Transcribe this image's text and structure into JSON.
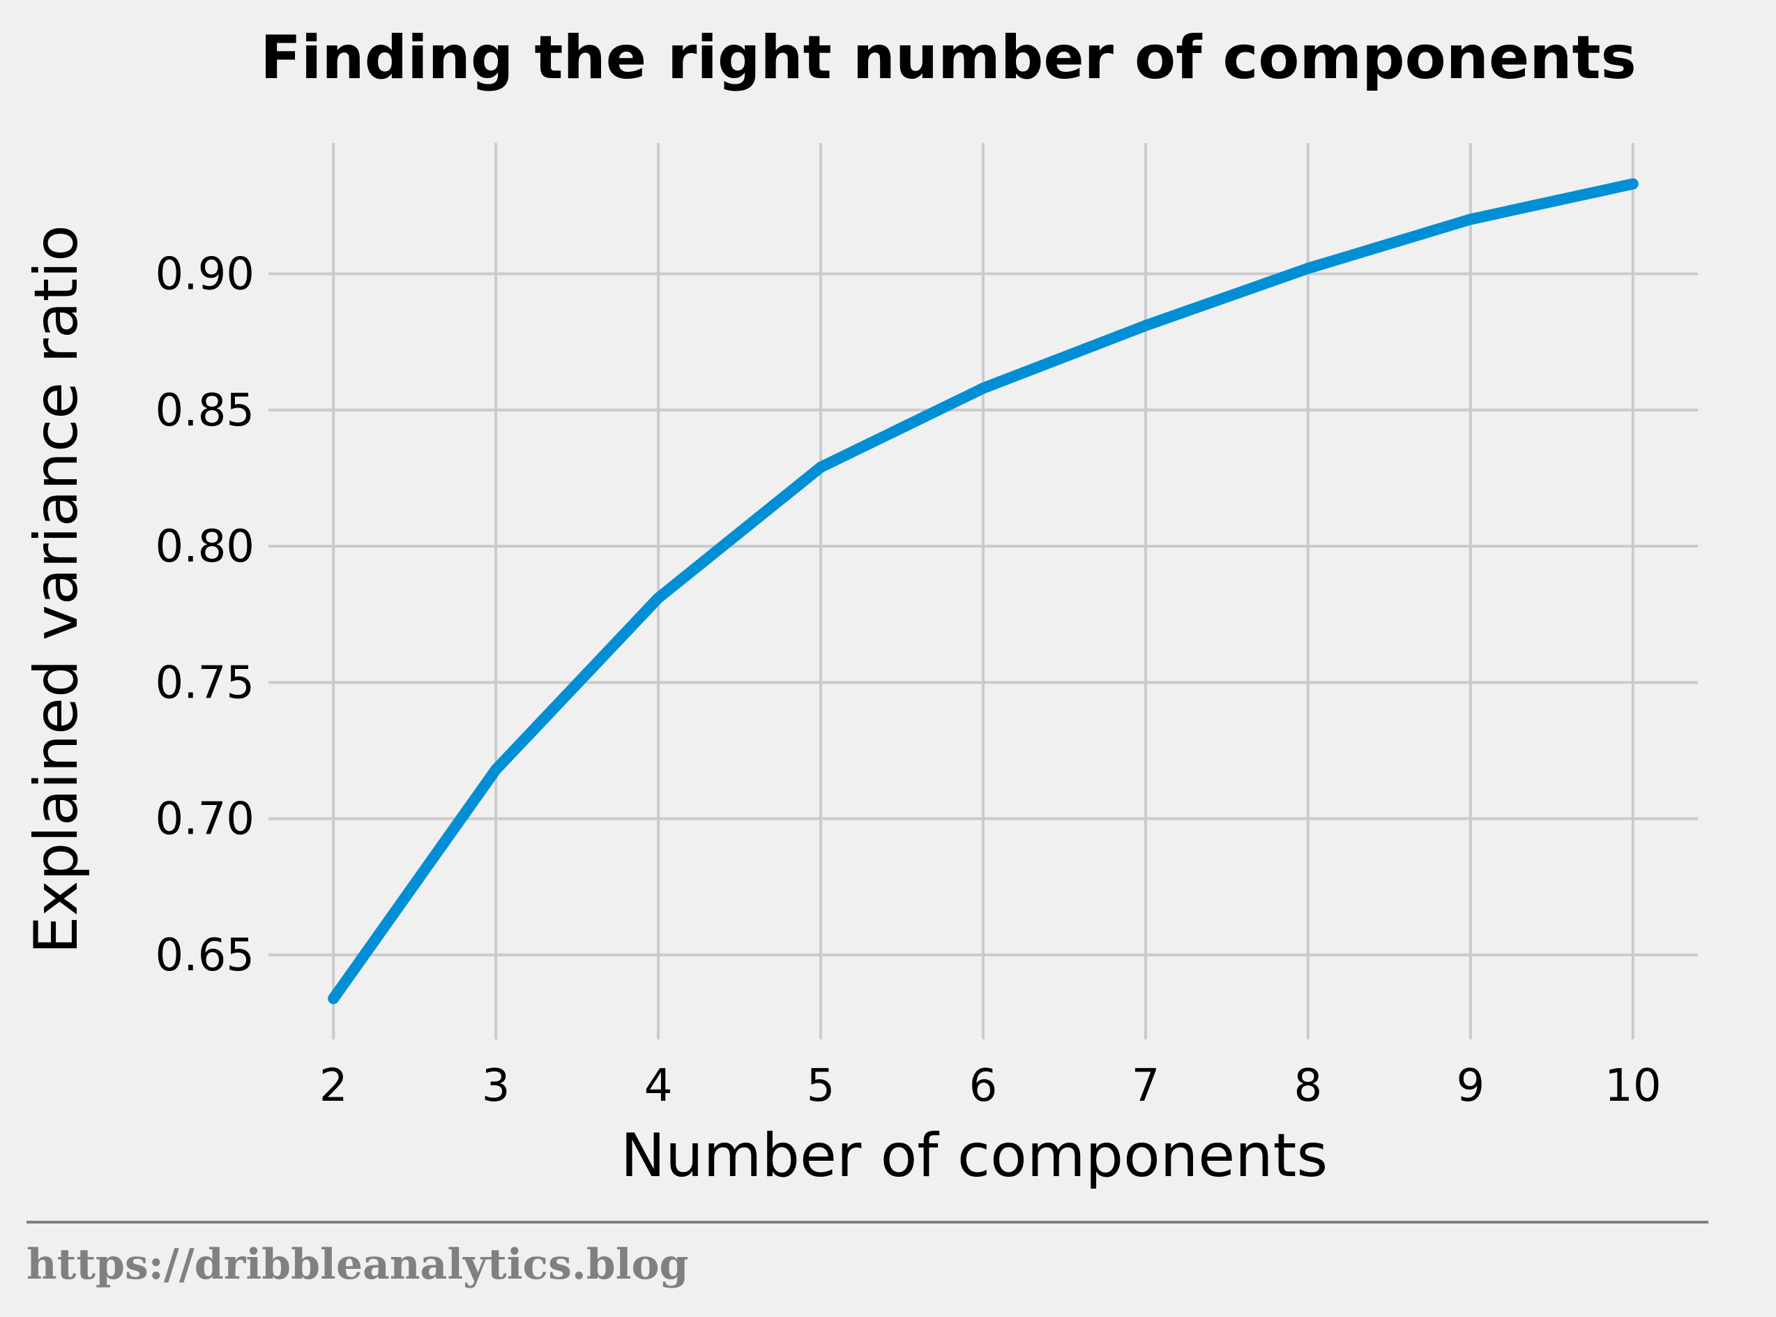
{
  "chart_data": {
    "type": "line",
    "title": "Finding the right number of components",
    "xlabel": "Number of components",
    "ylabel": "Explained variance ratio",
    "x": [
      2,
      3,
      4,
      5,
      6,
      7,
      8,
      9,
      10
    ],
    "series": [
      {
        "values": [
          0.634,
          0.718,
          0.781,
          0.829,
          0.858,
          0.881,
          0.902,
          0.92,
          0.933
        ],
        "color": "#008fd5"
      }
    ],
    "xticks": [
      "2",
      "3",
      "4",
      "5",
      "6",
      "7",
      "8",
      "9",
      "10"
    ],
    "yticks": [
      "0.65",
      "0.70",
      "0.75",
      "0.80",
      "0.85",
      "0.90"
    ],
    "xlim": [
      1.6,
      10.4
    ],
    "ylim": [
      0.619,
      0.948
    ],
    "grid": true
  },
  "footer": {
    "text": "https://dribbleanalytics.blog"
  },
  "colors": {
    "background": "#f0f0f0",
    "grid": "#cbcbcb",
    "line": "#008fd5",
    "footer": "#808080"
  }
}
